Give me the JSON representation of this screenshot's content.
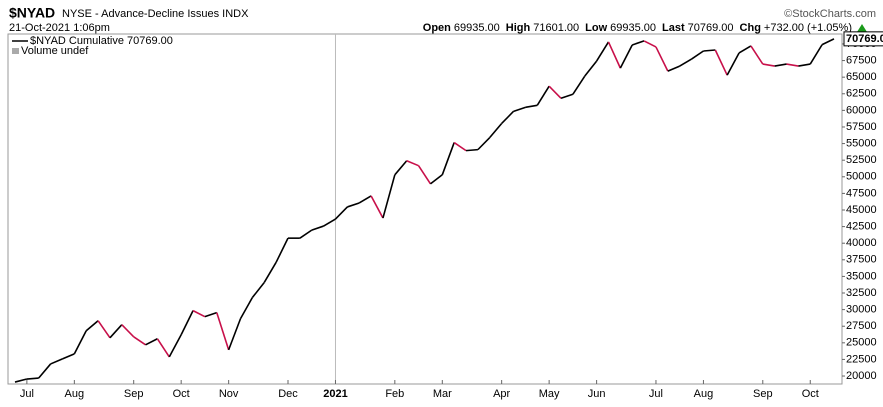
{
  "chart_data": {
    "type": "line",
    "symbol": "$NYAD",
    "title": "NYSE - Advance-Decline Issues INDX",
    "credit": "©StockCharts.com",
    "timestamp": "21-Oct-2021 1:06pm",
    "quote": [
      {
        "label": "Open",
        "value": "69935.00"
      },
      {
        "label": "High",
        "value": "71601.00"
      },
      {
        "label": "Low",
        "value": "69935.00"
      },
      {
        "label": "Last",
        "value": "70769.00"
      },
      {
        "label": "Chg",
        "value": "+732.00 (+1.05%)"
      }
    ],
    "legend": [
      "$NYAD Cumulative 70769.00",
      "Volume undef"
    ],
    "last_label": "70769.0",
    "categories": [
      null,
      "Jul",
      null,
      null,
      null,
      "Aug",
      null,
      null,
      null,
      null,
      "Sep",
      null,
      null,
      null,
      "Oct",
      null,
      null,
      null,
      "Nov",
      null,
      null,
      null,
      null,
      "Dec",
      null,
      null,
      null,
      "2021",
      null,
      null,
      null,
      null,
      "Feb",
      null,
      null,
      null,
      "Mar",
      null,
      null,
      null,
      null,
      "Apr",
      null,
      null,
      null,
      "May",
      null,
      null,
      null,
      "Jun",
      null,
      null,
      null,
      null,
      "Jul",
      null,
      null,
      null,
      "Aug",
      null,
      null,
      null,
      null,
      "Sep",
      null,
      null,
      null,
      "Oct",
      null,
      null
    ],
    "series": [
      {
        "name": "$NYAD",
        "up_color": "#000000",
        "down_color": "#c8104a",
        "values": [
          19090,
          19550,
          19700,
          21820,
          22580,
          23330,
          26820,
          28330,
          25760,
          27730,
          25910,
          24700,
          25610,
          22880,
          26210,
          29850,
          28940,
          29550,
          23940,
          28640,
          31820,
          34090,
          37120,
          40760,
          40760,
          41970,
          42580,
          43640,
          45460,
          46060,
          47120,
          43790,
          50300,
          52420,
          51670,
          48940,
          50300,
          55150,
          53940,
          54090,
          55910,
          58030,
          59850,
          60460,
          60760,
          63640,
          61820,
          62420,
          65150,
          67420,
          70300,
          66360,
          69850,
          70460,
          69550,
          65910,
          66670,
          67730,
          68940,
          69090,
          65300,
          68640,
          69700,
          66970,
          66670,
          66970,
          66670,
          66970,
          69900,
          70769
        ]
      }
    ],
    "ylim": [
      18800,
      71500
    ],
    "yticks": [
      20000,
      22500,
      25000,
      27500,
      30000,
      32500,
      35000,
      37500,
      40000,
      42500,
      45000,
      47500,
      50000,
      52500,
      55000,
      57500,
      60000,
      62500,
      65000,
      67500,
      70000
    ],
    "year_marker": "2021"
  }
}
